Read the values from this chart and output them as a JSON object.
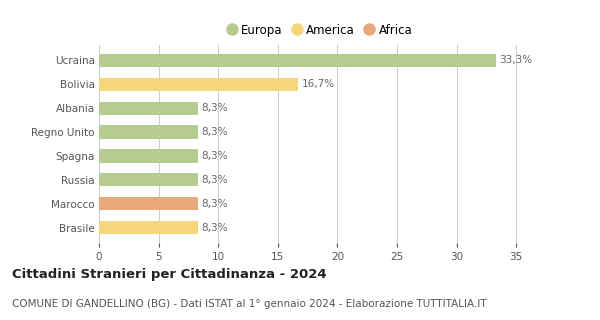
{
  "categories": [
    "Ucraina",
    "Bolivia",
    "Albania",
    "Regno Unito",
    "Spagna",
    "Russia",
    "Marocco",
    "Brasile"
  ],
  "values": [
    33.3,
    16.7,
    8.3,
    8.3,
    8.3,
    8.3,
    8.3,
    8.3
  ],
  "labels": [
    "33,3%",
    "16,7%",
    "8,3%",
    "8,3%",
    "8,3%",
    "8,3%",
    "8,3%",
    "8,3%"
  ],
  "continent": [
    "Europa",
    "America",
    "Europa",
    "Europa",
    "Europa",
    "Europa",
    "Africa",
    "America"
  ],
  "colors": {
    "Europa": "#b5cc8e",
    "America": "#f5d67b",
    "Africa": "#e8a87c"
  },
  "legend_order": [
    "Europa",
    "America",
    "Africa"
  ],
  "xlim": [
    0,
    37
  ],
  "xticks": [
    0,
    5,
    10,
    15,
    20,
    25,
    30,
    35
  ],
  "title": "Cittadini Stranieri per Cittadinanza - 2024",
  "subtitle": "COMUNE DI GANDELLINO (BG) - Dati ISTAT al 1° gennaio 2024 - Elaborazione TUTTITALIA.IT",
  "title_fontsize": 9.5,
  "subtitle_fontsize": 7.5,
  "bar_height": 0.55,
  "background_color": "#ffffff",
  "grid_color": "#cccccc",
  "tick_label_fontsize": 7.5,
  "value_label_fontsize": 7.5,
  "legend_fontsize": 8.5
}
